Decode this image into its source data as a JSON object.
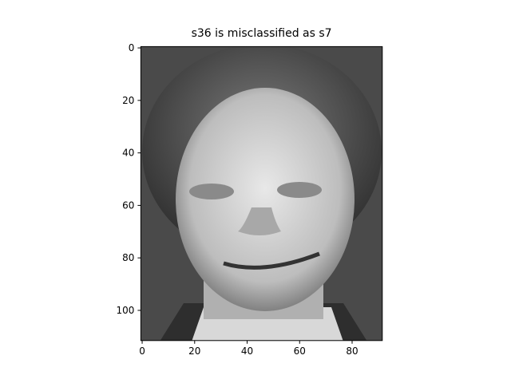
{
  "chart_data": {
    "type": "image",
    "title": "s36 is misclassified as s7",
    "xlim": [
      -0.5,
      91.5
    ],
    "ylim": [
      111.5,
      -0.5
    ],
    "xticks": [
      0,
      20,
      40,
      60,
      80
    ],
    "yticks": [
      0,
      20,
      40,
      60,
      80,
      100
    ],
    "colormap": "gray"
  }
}
